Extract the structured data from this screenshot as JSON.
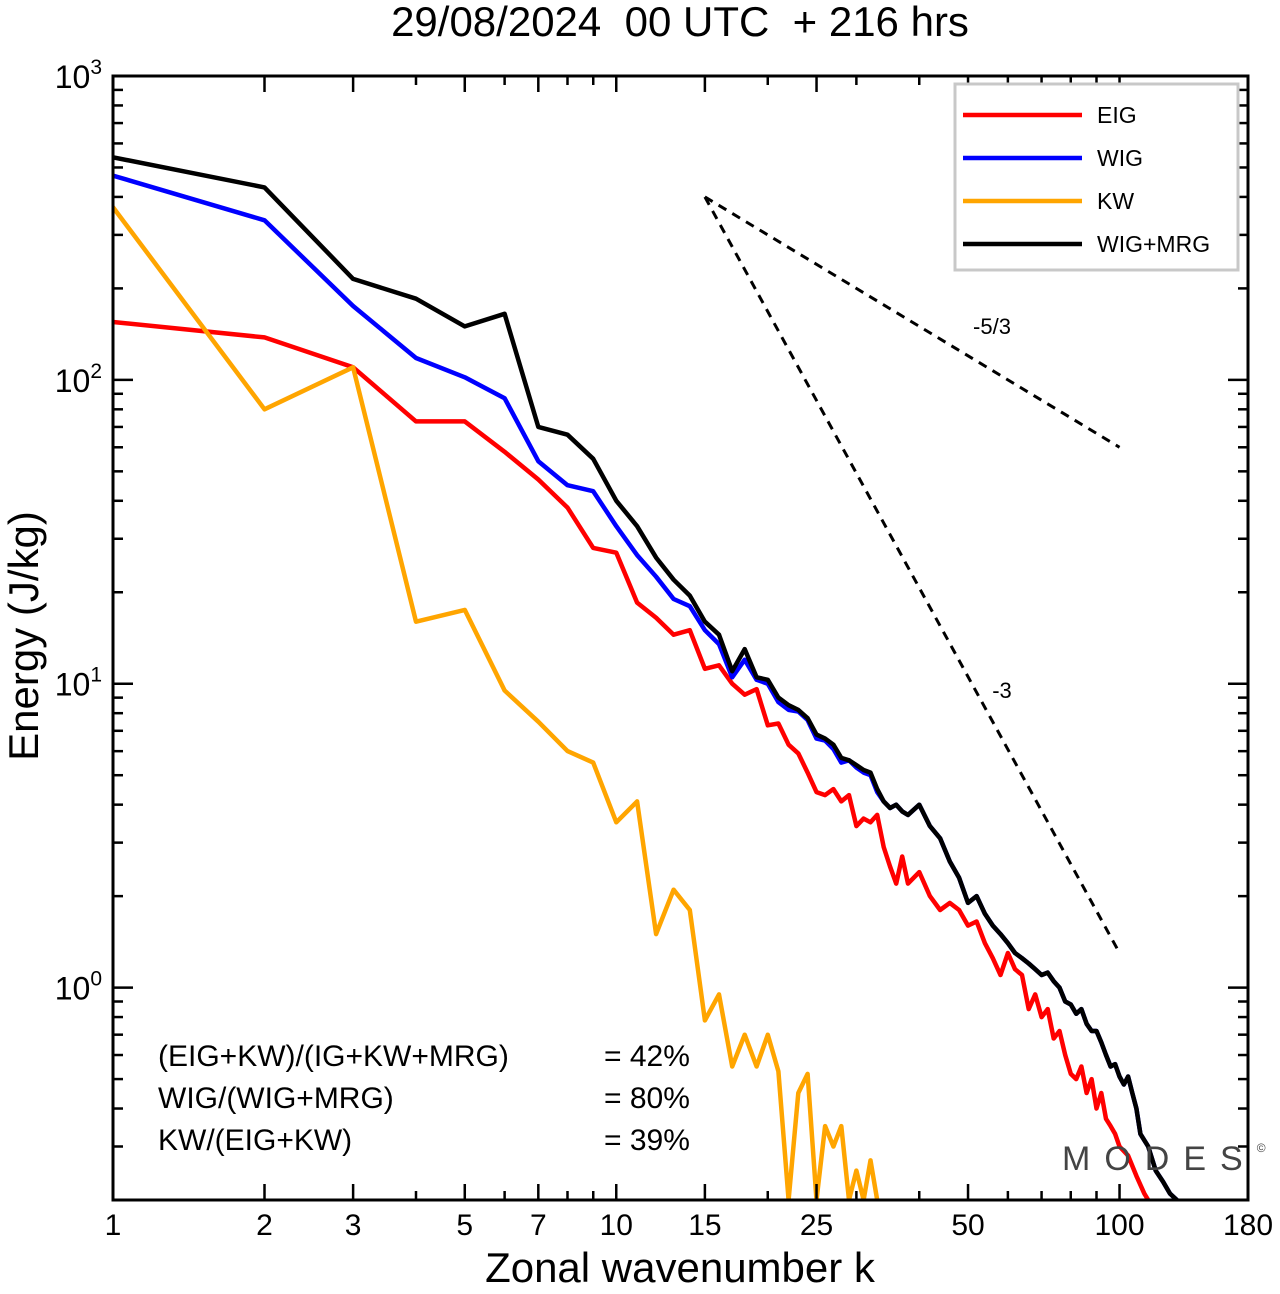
{
  "chart_data": {
    "type": "line",
    "title": "29/08/2024  00 UTC  + 216 hrs",
    "xlabel": "Zonal wavenumber k",
    "ylabel": "Energy (J/kg)",
    "x_scale": "log",
    "y_scale": "log",
    "xlim": [
      1,
      180
    ],
    "ylim": [
      0.2,
      1000
    ],
    "x_ticks": [
      {
        "value": 1,
        "label": "1"
      },
      {
        "value": 2,
        "label": "2"
      },
      {
        "value": 3,
        "label": "3"
      },
      {
        "value": 5,
        "label": "5"
      },
      {
        "value": 7,
        "label": "7"
      },
      {
        "value": 10,
        "label": "10"
      },
      {
        "value": 15,
        "label": "15"
      },
      {
        "value": 25,
        "label": "25"
      },
      {
        "value": 50,
        "label": "50"
      },
      {
        "value": 100,
        "label": "100"
      },
      {
        "value": 180,
        "label": "180"
      }
    ],
    "y_ticks": [
      {
        "value": 1,
        "mantissa": "10",
        "exp": "0"
      },
      {
        "value": 10,
        "mantissa": "10",
        "exp": "1"
      },
      {
        "value": 100,
        "mantissa": "10",
        "exp": "2"
      },
      {
        "value": 1000,
        "mantissa": "10",
        "exp": "3"
      }
    ],
    "legend_position": "top-right",
    "series": [
      {
        "name": "EIG",
        "color": "#ff0000",
        "points": [
          [
            1,
            155
          ],
          [
            2,
            138
          ],
          [
            3,
            110
          ],
          [
            4,
            73
          ],
          [
            5,
            73
          ],
          [
            6,
            58
          ],
          [
            7,
            47
          ],
          [
            8,
            38
          ],
          [
            9,
            28
          ],
          [
            10,
            27
          ],
          [
            11,
            18.5
          ],
          [
            12,
            16.5
          ],
          [
            13,
            14.5
          ],
          [
            14,
            15
          ],
          [
            15,
            11.2
          ],
          [
            16,
            11.5
          ],
          [
            17,
            10
          ],
          [
            18,
            9.2
          ],
          [
            19,
            9.6
          ],
          [
            20,
            7.3
          ],
          [
            21,
            7.4
          ],
          [
            22,
            6.3
          ],
          [
            23,
            5.9
          ],
          [
            24,
            5.1
          ],
          [
            25,
            4.4
          ],
          [
            26,
            4.3
          ],
          [
            27,
            4.5
          ],
          [
            28,
            4.1
          ],
          [
            29,
            4.3
          ],
          [
            30,
            3.4
          ],
          [
            31,
            3.6
          ],
          [
            32,
            3.5
          ],
          [
            33,
            3.7
          ],
          [
            34,
            2.9
          ],
          [
            35,
            2.5
          ],
          [
            36,
            2.2
          ],
          [
            37,
            2.7
          ],
          [
            38,
            2.2
          ],
          [
            40,
            2.4
          ],
          [
            42,
            2
          ],
          [
            44,
            1.8
          ],
          [
            46,
            1.9
          ],
          [
            48,
            1.8
          ],
          [
            50,
            1.6
          ],
          [
            52,
            1.65
          ],
          [
            54,
            1.4
          ],
          [
            56,
            1.25
          ],
          [
            58,
            1.1
          ],
          [
            60,
            1.3
          ],
          [
            62,
            1.15
          ],
          [
            64,
            1.1
          ],
          [
            66,
            0.85
          ],
          [
            68,
            0.95
          ],
          [
            70,
            0.8
          ],
          [
            72,
            0.85
          ],
          [
            74,
            0.68
          ],
          [
            76,
            0.72
          ],
          [
            78,
            0.6
          ],
          [
            80,
            0.52
          ],
          [
            82,
            0.5
          ],
          [
            84,
            0.55
          ],
          [
            86,
            0.45
          ],
          [
            88,
            0.5
          ],
          [
            90,
            0.4
          ],
          [
            92,
            0.45
          ],
          [
            94,
            0.37
          ],
          [
            96,
            0.35
          ],
          [
            98,
            0.33
          ],
          [
            100,
            0.3
          ],
          [
            104,
            0.28
          ],
          [
            108,
            0.24
          ],
          [
            112,
            0.21
          ],
          [
            114,
            0.2
          ]
        ]
      },
      {
        "name": "WIG",
        "color": "#0000ff",
        "points": [
          [
            1,
            470
          ],
          [
            2,
            335
          ],
          [
            3,
            175
          ],
          [
            4,
            118
          ],
          [
            5,
            102
          ],
          [
            6,
            87
          ],
          [
            7,
            54
          ],
          [
            8,
            45
          ],
          [
            9,
            43
          ],
          [
            10,
            33
          ],
          [
            11,
            26.5
          ],
          [
            12,
            22.5
          ],
          [
            13,
            19
          ],
          [
            14,
            18
          ],
          [
            15,
            15
          ],
          [
            16,
            13.5
          ],
          [
            17,
            10.5
          ],
          [
            18,
            12
          ],
          [
            19,
            10.3
          ],
          [
            20,
            10
          ],
          [
            21,
            8.7
          ],
          [
            22,
            8.2
          ],
          [
            23,
            8.1
          ],
          [
            24,
            7.6
          ],
          [
            25,
            6.6
          ],
          [
            26,
            6.5
          ],
          [
            27,
            6.1
          ],
          [
            28,
            5.5
          ],
          [
            29,
            5.6
          ],
          [
            30,
            5.3
          ],
          [
            31,
            5.1
          ],
          [
            32,
            5
          ],
          [
            33,
            4.4
          ],
          [
            34,
            4.1
          ],
          [
            35,
            3.9
          ],
          [
            36,
            4
          ],
          [
            37,
            3.8
          ],
          [
            38,
            3.7
          ],
          [
            40,
            4
          ],
          [
            42,
            3.4
          ],
          [
            44,
            3.1
          ],
          [
            46,
            2.6
          ],
          [
            48,
            2.3
          ],
          [
            50,
            1.9
          ],
          [
            52,
            2
          ],
          [
            54,
            1.75
          ],
          [
            56,
            1.6
          ],
          [
            58,
            1.5
          ],
          [
            60,
            1.4
          ],
          [
            62,
            1.3
          ],
          [
            64,
            1.25
          ],
          [
            66,
            1.2
          ],
          [
            68,
            1.15
          ],
          [
            70,
            1.1
          ],
          [
            72,
            1.12
          ],
          [
            74,
            1.05
          ],
          [
            76,
            1
          ],
          [
            78,
            0.9
          ],
          [
            80,
            0.88
          ],
          [
            82,
            0.82
          ],
          [
            84,
            0.85
          ],
          [
            86,
            0.76
          ],
          [
            88,
            0.72
          ],
          [
            90,
            0.72
          ],
          [
            92,
            0.66
          ],
          [
            94,
            0.6
          ],
          [
            96,
            0.55
          ],
          [
            98,
            0.56
          ],
          [
            100,
            0.51
          ],
          [
            102,
            0.48
          ],
          [
            104,
            0.51
          ],
          [
            106,
            0.45
          ],
          [
            108,
            0.4
          ],
          [
            110,
            0.33
          ],
          [
            114,
            0.3
          ],
          [
            118,
            0.25
          ],
          [
            122,
            0.23
          ],
          [
            126,
            0.21
          ],
          [
            130,
            0.2
          ]
        ]
      },
      {
        "name": "KW",
        "color": "#ffa500",
        "points": [
          [
            1,
            370
          ],
          [
            2,
            80
          ],
          [
            3,
            110
          ],
          [
            4,
            16
          ],
          [
            5,
            17.5
          ],
          [
            6,
            9.5
          ],
          [
            7,
            7.5
          ],
          [
            8,
            6
          ],
          [
            9,
            5.5
          ],
          [
            10,
            3.5
          ],
          [
            11,
            4.1
          ],
          [
            12,
            1.5
          ],
          [
            13,
            2.1
          ],
          [
            14,
            1.8
          ],
          [
            15,
            0.78
          ],
          [
            16,
            0.95
          ],
          [
            17,
            0.55
          ],
          [
            18,
            0.7
          ],
          [
            19,
            0.55
          ],
          [
            20,
            0.7
          ],
          [
            21,
            0.53
          ],
          [
            22,
            0.2
          ],
          [
            23,
            0.45
          ],
          [
            24,
            0.52
          ],
          [
            25,
            0.2
          ],
          [
            26,
            0.35
          ],
          [
            27,
            0.3
          ],
          [
            28,
            0.35
          ],
          [
            29,
            0.2
          ],
          [
            30,
            0.25
          ],
          [
            31,
            0.2
          ],
          [
            32,
            0.27
          ],
          [
            33,
            0.2
          ]
        ]
      },
      {
        "name": "WIG+MRG",
        "color": "#000000",
        "points": [
          [
            1,
            540
          ],
          [
            2,
            430
          ],
          [
            3,
            215
          ],
          [
            4,
            185
          ],
          [
            5,
            150
          ],
          [
            6,
            165
          ],
          [
            7,
            70
          ],
          [
            8,
            66
          ],
          [
            9,
            55
          ],
          [
            10,
            40
          ],
          [
            11,
            33
          ],
          [
            12,
            26
          ],
          [
            13,
            22
          ],
          [
            14,
            19.5
          ],
          [
            15,
            16
          ],
          [
            16,
            14.5
          ],
          [
            17,
            11
          ],
          [
            18,
            13
          ],
          [
            19,
            10.5
          ],
          [
            20,
            10.3
          ],
          [
            21,
            9
          ],
          [
            22,
            8.5
          ],
          [
            23,
            8.2
          ],
          [
            24,
            7.7
          ],
          [
            25,
            6.8
          ],
          [
            26,
            6.6
          ],
          [
            27,
            6.3
          ],
          [
            28,
            5.7
          ],
          [
            29,
            5.6
          ],
          [
            30,
            5.4
          ],
          [
            31,
            5.2
          ],
          [
            32,
            5.1
          ],
          [
            33,
            4.5
          ],
          [
            34,
            4.1
          ],
          [
            35,
            3.9
          ],
          [
            36,
            4
          ],
          [
            37,
            3.8
          ],
          [
            38,
            3.7
          ],
          [
            40,
            4
          ],
          [
            42,
            3.4
          ],
          [
            44,
            3.1
          ],
          [
            46,
            2.6
          ],
          [
            48,
            2.3
          ],
          [
            50,
            1.9
          ],
          [
            52,
            2
          ],
          [
            54,
            1.75
          ],
          [
            56,
            1.6
          ],
          [
            58,
            1.5
          ],
          [
            60,
            1.4
          ],
          [
            62,
            1.3
          ],
          [
            64,
            1.25
          ],
          [
            66,
            1.2
          ],
          [
            68,
            1.15
          ],
          [
            70,
            1.1
          ],
          [
            72,
            1.12
          ],
          [
            74,
            1.05
          ],
          [
            76,
            1
          ],
          [
            78,
            0.9
          ],
          [
            80,
            0.88
          ],
          [
            82,
            0.82
          ],
          [
            84,
            0.85
          ],
          [
            86,
            0.76
          ],
          [
            88,
            0.72
          ],
          [
            90,
            0.72
          ],
          [
            92,
            0.66
          ],
          [
            94,
            0.6
          ],
          [
            96,
            0.55
          ],
          [
            98,
            0.56
          ],
          [
            100,
            0.51
          ],
          [
            102,
            0.48
          ],
          [
            104,
            0.51
          ],
          [
            106,
            0.45
          ],
          [
            108,
            0.4
          ],
          [
            110,
            0.33
          ],
          [
            114,
            0.3
          ],
          [
            118,
            0.25
          ],
          [
            122,
            0.23
          ],
          [
            126,
            0.21
          ],
          [
            130,
            0.2
          ]
        ]
      }
    ],
    "reference_slopes": [
      {
        "label": "-5/3",
        "from": [
          15,
          400
        ],
        "to": [
          100,
          60
        ]
      },
      {
        "label": "-3",
        "from": [
          15,
          400
        ],
        "to": [
          100,
          1.3
        ]
      }
    ],
    "stats": [
      {
        "label": "(EIG+KW)/(IG+KW+MRG)",
        "value": "= 42%"
      },
      {
        "label": "WIG/(WIG+MRG)",
        "value": "= 80%"
      },
      {
        "label": "KW/(EIG+KW)",
        "value": "= 39%"
      }
    ],
    "watermark": "MODES",
    "watermark_mark": "©"
  }
}
